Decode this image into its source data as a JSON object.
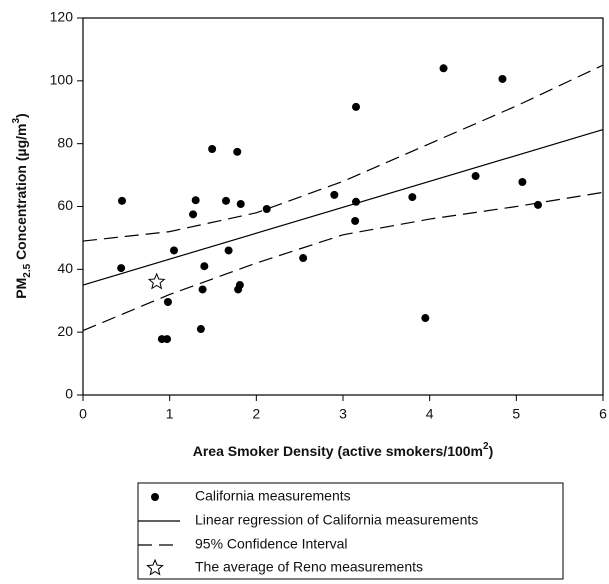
{
  "chart_data": {
    "type": "scatter",
    "x_label": [
      "Area Smoker Density (active smokers/100m",
      "2",
      ")"
    ],
    "y_label": [
      "PM",
      "2.5",
      " Concentration (µg/m",
      "3",
      ")"
    ],
    "xlim": [
      0,
      6
    ],
    "xticks": [
      0,
      1,
      2,
      3,
      4,
      5,
      6
    ],
    "ylim": [
      0,
      120
    ],
    "yticks": [
      0,
      20,
      40,
      60,
      80,
      100,
      120
    ],
    "grid": false,
    "series": [
      {
        "name": "California measurements",
        "marker": "circle",
        "color": "#000000",
        "x": [
          0.45,
          0.44,
          1.05,
          0.98,
          0.91,
          0.97,
          1.3,
          1.27,
          1.49,
          1.4,
          1.38,
          1.36,
          1.65,
          1.68,
          1.78,
          1.82,
          1.79,
          1.81,
          2.12,
          2.54,
          2.9,
          3.15,
          3.15,
          3.14,
          3.8,
          3.95,
          4.16,
          4.53,
          4.84,
          5.07,
          5.25
        ],
        "values": [
          61.8,
          40.4,
          46,
          29.6,
          17.8,
          17.8,
          62,
          57.5,
          78.3,
          41,
          33.6,
          21,
          61.8,
          46,
          77.4,
          60.8,
          33.6,
          35,
          59.2,
          43.6,
          63.7,
          91.7,
          61.5,
          55.4,
          63,
          24.5,
          104,
          69.7,
          100.6,
          67.8,
          60.5
        ]
      },
      {
        "name": "The average of Reno measurements",
        "marker": "star",
        "color": "#000000",
        "x": [
          0.85
        ],
        "values": [
          36
        ]
      }
    ],
    "regression": {
      "name": "Linear regression of California measurements",
      "color": "#000000",
      "x": [
        0,
        6
      ],
      "values": [
        35,
        84.5
      ]
    },
    "confidence_interval": {
      "name": "95% Confidence Interval",
      "color": "#000000",
      "x": [
        0,
        1,
        2,
        3,
        4,
        5,
        6
      ],
      "upper": [
        49,
        52,
        58,
        68,
        80,
        92,
        105
      ],
      "lower": [
        20.5,
        32,
        42,
        51,
        56,
        60,
        64.5
      ]
    }
  }
}
